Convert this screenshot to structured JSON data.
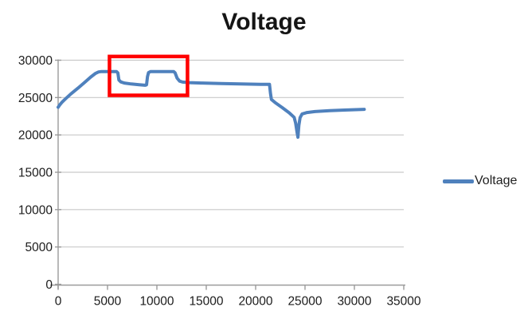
{
  "chart_data": {
    "type": "line",
    "title": "Voltage",
    "xlabel": "",
    "ylabel": "",
    "grid": "horizontal",
    "legend_position": "right",
    "x_axis": {
      "min": 0,
      "max": 35000,
      "tick_interval": 5000,
      "ticks": [
        0,
        5000,
        10000,
        15000,
        20000,
        25000,
        30000,
        35000
      ]
    },
    "y_axis": {
      "min": 0,
      "max": 30000,
      "tick_interval": 5000,
      "ticks": [
        0,
        5000,
        10000,
        15000,
        20000,
        25000,
        30000
      ]
    },
    "series": [
      {
        "name": "Voltage",
        "color": "#4F81BD",
        "points": [
          [
            0,
            23700
          ],
          [
            150,
            24000
          ],
          [
            400,
            24400
          ],
          [
            800,
            24900
          ],
          [
            1300,
            25500
          ],
          [
            2000,
            26250
          ],
          [
            2700,
            27050
          ],
          [
            3300,
            27750
          ],
          [
            3800,
            28250
          ],
          [
            4100,
            28430
          ],
          [
            4400,
            28480
          ],
          [
            5900,
            28480
          ],
          [
            6050,
            28300
          ],
          [
            6150,
            27350
          ],
          [
            6350,
            27100
          ],
          [
            6700,
            26950
          ],
          [
            7400,
            26820
          ],
          [
            8200,
            26720
          ],
          [
            8800,
            26650
          ],
          [
            8950,
            26700
          ],
          [
            9050,
            27800
          ],
          [
            9150,
            28350
          ],
          [
            9350,
            28470
          ],
          [
            11700,
            28470
          ],
          [
            11850,
            28300
          ],
          [
            12050,
            27600
          ],
          [
            12300,
            27200
          ],
          [
            12600,
            27070
          ],
          [
            13300,
            27000
          ],
          [
            14500,
            26950
          ],
          [
            16500,
            26880
          ],
          [
            18500,
            26820
          ],
          [
            20500,
            26780
          ],
          [
            21400,
            26760
          ],
          [
            21500,
            25600
          ],
          [
            21600,
            24750
          ],
          [
            22000,
            24300
          ],
          [
            22700,
            23650
          ],
          [
            23400,
            22950
          ],
          [
            23900,
            22350
          ],
          [
            24050,
            21600
          ],
          [
            24200,
            20300
          ],
          [
            24280,
            19700
          ],
          [
            24380,
            21300
          ],
          [
            24500,
            22300
          ],
          [
            24700,
            22800
          ],
          [
            25200,
            23000
          ],
          [
            26000,
            23120
          ],
          [
            27500,
            23250
          ],
          [
            29000,
            23330
          ],
          [
            31000,
            23420
          ]
        ]
      }
    ],
    "annotations": [
      {
        "type": "rect",
        "color": "#FF0000",
        "x0": 5200,
        "x1": 13100,
        "y0": 25300,
        "y1": 30500
      }
    ],
    "colors": {
      "series_line": "#4F81BD",
      "annotation_box": "#FF0000",
      "gridline": "#C9C9C9",
      "axis": "#9B9B9B",
      "tick_label": "#1c1c1c",
      "title": "#151515"
    }
  }
}
